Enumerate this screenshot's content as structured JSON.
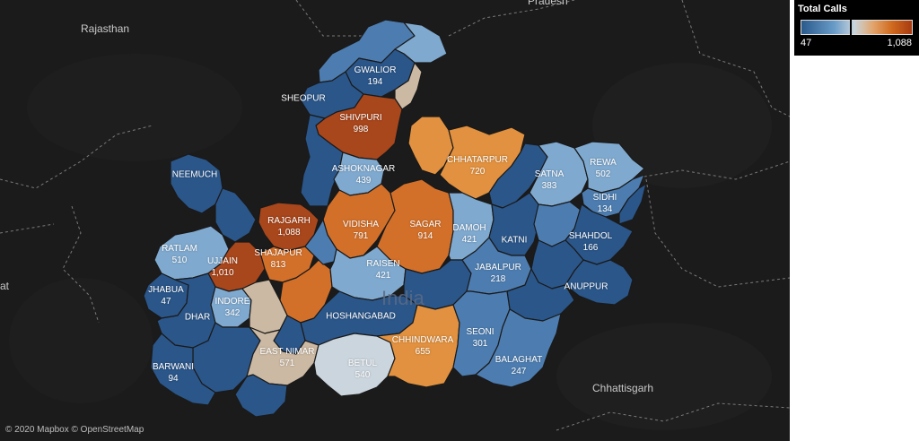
{
  "legend": {
    "title": "Total Calls",
    "min": "47",
    "max": "1,088"
  },
  "attribution": "© 2020 Mapbox © OpenStreetMap",
  "background_labels": {
    "rajasthan": "Rajasthan",
    "pradesh": "Pradesh",
    "chhattisgarh": "Chhattisgarh",
    "left_edge": "at",
    "india": "India"
  },
  "colors": {
    "dark_blue": "#2b5689",
    "mid_blue": "#4d7db0",
    "light_blue": "#7fa9cf",
    "pale": "#cbb9a3",
    "light_orange": "#e1913f",
    "orange": "#d2702a",
    "dark_orange": "#a8461c"
  },
  "districts": [
    {
      "name": "GWALIOR",
      "value": "194"
    },
    {
      "name": "SHEOPUR",
      "value": ""
    },
    {
      "name": "SHIVPURI",
      "value": "998"
    },
    {
      "name": "NEEMUCH",
      "value": ""
    },
    {
      "name": "ASHOKNAGAR",
      "value": "439"
    },
    {
      "name": "CHHATARPUR",
      "value": "720"
    },
    {
      "name": "SATNA",
      "value": "383"
    },
    {
      "name": "REWA",
      "value": "502"
    },
    {
      "name": "SIDHI",
      "value": "134"
    },
    {
      "name": "RAJGARH",
      "value": "1,088"
    },
    {
      "name": "VIDISHA",
      "value": "791"
    },
    {
      "name": "SAGAR",
      "value": "914"
    },
    {
      "name": "DAMOH",
      "value": "421"
    },
    {
      "name": "KATNI",
      "value": ""
    },
    {
      "name": "SHAHDOL",
      "value": "166"
    },
    {
      "name": "RATLAM",
      "value": "510"
    },
    {
      "name": "UJJAIN",
      "value": "1,010"
    },
    {
      "name": "SHAJAPUR",
      "value": "813"
    },
    {
      "name": "RAISEN",
      "value": "421"
    },
    {
      "name": "JABALPUR",
      "value": "218"
    },
    {
      "name": "ANUPPUR",
      "value": ""
    },
    {
      "name": "JHABUA",
      "value": "47"
    },
    {
      "name": "INDORE",
      "value": "342"
    },
    {
      "name": "DHAR",
      "value": ""
    },
    {
      "name": "HOSHANGABAD",
      "value": ""
    },
    {
      "name": "SEONI",
      "value": "301"
    },
    {
      "name": "EAST NIMAR",
      "value": "571"
    },
    {
      "name": "CHHINDWARA",
      "value": "655"
    },
    {
      "name": "BETUL",
      "value": "540"
    },
    {
      "name": "BALAGHAT",
      "value": "247"
    },
    {
      "name": "BARWANI",
      "value": "94"
    }
  ]
}
